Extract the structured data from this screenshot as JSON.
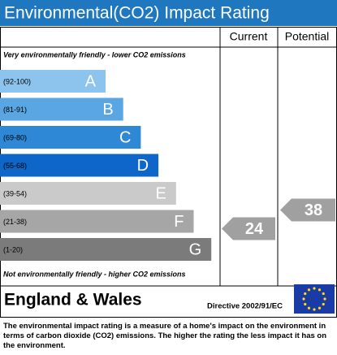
{
  "chart_data": {
    "type": "epc",
    "title": "Environmental(CO2) Impact Rating",
    "column_headers": [
      "Current",
      "Potential"
    ],
    "top_note": "Very environmentally friendly - lower CO2 emissions",
    "bottom_note": "Not environmentally friendly - higher CO2 emissions",
    "bands": [
      {
        "range": "(92-100)",
        "letter": "A",
        "color": "#8cc4ee"
      },
      {
        "range": "(81-91)",
        "letter": "B",
        "color": "#5aa6e2"
      },
      {
        "range": "(69-80)",
        "letter": "C",
        "color": "#2f88d6"
      },
      {
        "range": "(55-68)",
        "letter": "D",
        "color": "#0d66c8"
      },
      {
        "range": "(39-54)",
        "letter": "E",
        "color": "#cacaca"
      },
      {
        "range": "(21-38)",
        "letter": "F",
        "color": "#a6a6a6"
      },
      {
        "range": "(1-20)",
        "letter": "G",
        "color": "#7b7b7b"
      }
    ],
    "current": 24,
    "potential": 38,
    "arrow_color": "#a0a0a0",
    "region": "England & Wales",
    "directive": "Directive 2002/91/EC",
    "description": "The environmental impact rating is a measure of a home's impact on the environment in terms of carbon dioxide (CO2) emissions. The higher the rating the less impact it has on the environment."
  }
}
